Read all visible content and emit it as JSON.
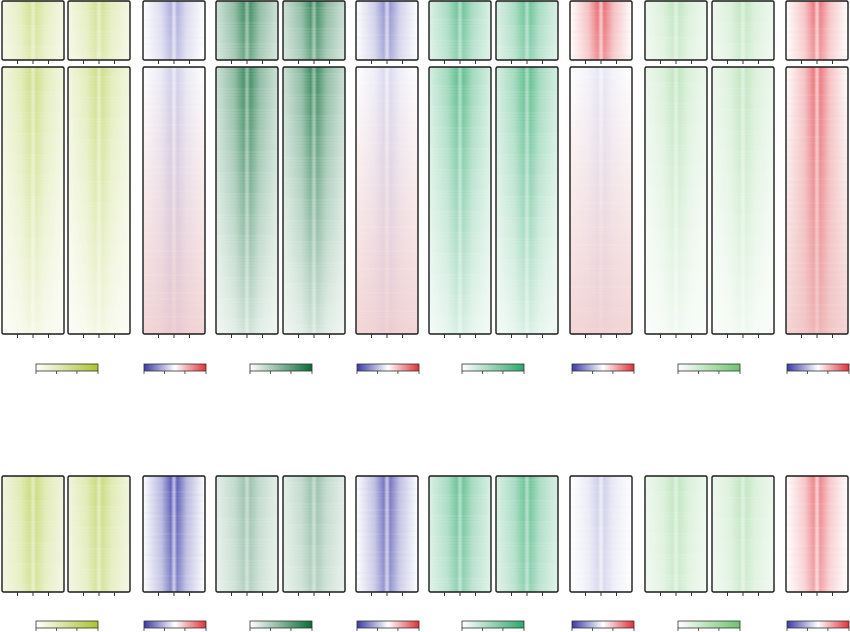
{
  "chart_data": {
    "type": "heatmap",
    "description_free": true,
    "columns": [
      {
        "name": "",
        "colormap": [
          "#ffffff",
          "#a8c42b"
        ],
        "scheme": "sequential-yellowgreen"
      },
      {
        "name": "",
        "colormap": [
          "#ffffff",
          "#a8c42b"
        ],
        "scheme": "sequential-yellowgreen"
      },
      {
        "name": "",
        "colormap": [
          "#3a3aa8",
          "#ffffff",
          "#e0303a"
        ],
        "scheme": "diverging-blue-red"
      },
      {
        "name": "",
        "colormap": [
          "#ffffff",
          "#0a6b36"
        ],
        "scheme": "sequential-darkgreen"
      },
      {
        "name": "",
        "colormap": [
          "#ffffff",
          "#0a6b36"
        ],
        "scheme": "sequential-darkgreen"
      },
      {
        "name": "",
        "colormap": [
          "#3a3aa8",
          "#ffffff",
          "#e0303a"
        ],
        "scheme": "diverging-blue-red"
      },
      {
        "name": "",
        "colormap": [
          "#ffffff",
          "#2aa86a"
        ],
        "scheme": "sequential-green"
      },
      {
        "name": "",
        "colormap": [
          "#ffffff",
          "#2aa86a"
        ],
        "scheme": "sequential-green"
      },
      {
        "name": "",
        "colormap": [
          "#3a3aa8",
          "#ffffff",
          "#e0303a"
        ],
        "scheme": "diverging-blue-red"
      },
      {
        "name": "",
        "colormap": [
          "#ffffff",
          "#6cc46c"
        ],
        "scheme": "sequential-lightgreen"
      },
      {
        "name": "",
        "colormap": [
          "#ffffff",
          "#6cc46c"
        ],
        "scheme": "sequential-lightgreen"
      },
      {
        "name": "",
        "colormap": [
          "#3a3aa8",
          "#ffffff",
          "#e0303a"
        ],
        "scheme": "diverging-blue-red"
      }
    ],
    "groups": [
      {
        "id": "top-small",
        "relative_rows": 1
      },
      {
        "id": "top-large",
        "relative_rows": 5
      },
      {
        "id": "bottom",
        "relative_rows": 2
      }
    ],
    "column_profiles": {
      "top-small": [
        0.55,
        0.55,
        -0.35,
        0.85,
        0.85,
        -0.45,
        0.75,
        0.75,
        0.6,
        0.45,
        0.45,
        0.55
      ],
      "top-large": [
        0.6,
        0.6,
        -0.2,
        0.85,
        0.85,
        -0.15,
        0.8,
        0.8,
        -0.1,
        0.45,
        0.45,
        0.55
      ],
      "bottom": [
        0.65,
        0.65,
        -0.7,
        0.45,
        0.45,
        -0.6,
        0.75,
        0.75,
        -0.2,
        0.45,
        0.45,
        0.5
      ]
    },
    "colorbar_pairs": [
      {
        "columns": [
          0,
          1
        ],
        "colormap": [
          "#ffffff",
          "#a8c42b"
        ]
      },
      {
        "columns": [
          2
        ],
        "colormap": [
          "#3a3aa8",
          "#ffffff",
          "#e0303a"
        ]
      },
      {
        "columns": [
          3,
          4
        ],
        "colormap": [
          "#ffffff",
          "#0a6b36"
        ]
      },
      {
        "columns": [
          5
        ],
        "colormap": [
          "#3a3aa8",
          "#ffffff",
          "#e0303a"
        ]
      },
      {
        "columns": [
          6,
          7
        ],
        "colormap": [
          "#ffffff",
          "#2aa86a"
        ]
      },
      {
        "columns": [
          8
        ],
        "colormap": [
          "#3a3aa8",
          "#ffffff",
          "#e0303a"
        ]
      },
      {
        "columns": [
          9,
          10
        ],
        "colormap": [
          "#ffffff",
          "#6cc46c"
        ]
      },
      {
        "columns": [
          11
        ],
        "colormap": [
          "#3a3aa8",
          "#ffffff",
          "#e0303a"
        ]
      }
    ],
    "title": "",
    "xlabel": "",
    "ylabel": "",
    "legend": "none",
    "grid": false
  }
}
